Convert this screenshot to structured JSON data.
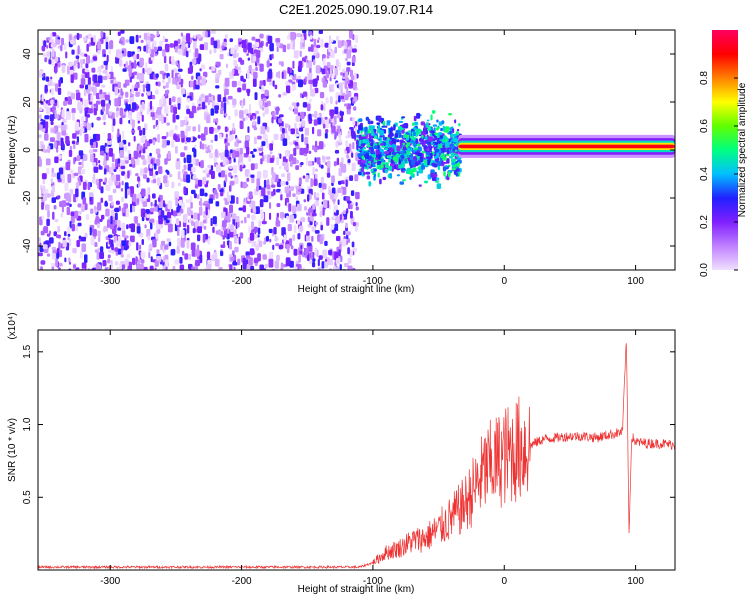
{
  "title": "C2E1.2025.090.19.07.R14",
  "colors": {
    "line": "#ee3333",
    "frame": "#000000"
  },
  "chart_data": [
    {
      "type": "heatmap",
      "xlabel": "Height of straight line (km)",
      "ylabel": "Frequency (Hz)",
      "xlim": [
        -355,
        130
      ],
      "ylim": [
        -50,
        50
      ],
      "x_ticks": [
        -300,
        -200,
        -100,
        0,
        100
      ],
      "y_ticks": [
        -40,
        -20,
        0,
        20,
        40
      ],
      "colorbar": {
        "label": "Normalized spectral amplitude",
        "range": [
          0,
          1
        ],
        "ticks": [
          "0.0",
          "0.2",
          "0.4",
          "0.6",
          "0.8"
        ],
        "stops": [
          "#f0e0ff",
          "#c080ff",
          "#8020ff",
          "#2020ff",
          "#00c0ff",
          "#00ff80",
          "#60ff00",
          "#ffff00",
          "#ff8000",
          "#ff0000",
          "#ff0060"
        ]
      },
      "regions": [
        {
          "from": -355,
          "to": -113,
          "description_level": 0.25,
          "freq_span": [
            -50,
            50
          ]
        },
        {
          "from": -113,
          "to": -35,
          "description_level": 0.45,
          "freq_span": [
            -12,
            14
          ]
        },
        {
          "from": -35,
          "to": 130,
          "description_level": 0.9,
          "freq_center": 1.5,
          "freq_halfwidth": 1.5
        }
      ]
    },
    {
      "type": "line",
      "xlabel": "Height of straight line (km)",
      "ylabel": "SNR (10 * v/v)",
      "multiplier": "(x10⁴)",
      "xlim": [
        -355,
        130
      ],
      "ylim": [
        0,
        1.65
      ],
      "x_ticks": [
        -300,
        -200,
        -100,
        0,
        100
      ],
      "y_ticks": [
        "0.5",
        "1.0",
        "1.5"
      ],
      "series": [
        {
          "x": [
            -355,
            -300,
            -200,
            -110,
            -100,
            -90,
            -80,
            -70,
            -60,
            -50,
            -40,
            -30,
            -20,
            -15,
            -10,
            -5,
            0,
            10,
            20,
            30,
            40,
            50,
            60,
            70,
            80,
            90,
            93,
            95,
            97,
            100,
            110,
            120,
            130
          ],
          "y": [
            0.02,
            0.02,
            0.02,
            0.02,
            0.05,
            0.12,
            0.15,
            0.2,
            0.22,
            0.28,
            0.36,
            0.45,
            0.6,
            0.68,
            0.72,
            0.75,
            0.78,
            0.83,
            0.86,
            0.9,
            0.91,
            0.92,
            0.92,
            0.91,
            0.93,
            0.95,
            1.6,
            0.25,
            0.92,
            0.88,
            0.87,
            0.87,
            0.86
          ]
        }
      ]
    }
  ]
}
